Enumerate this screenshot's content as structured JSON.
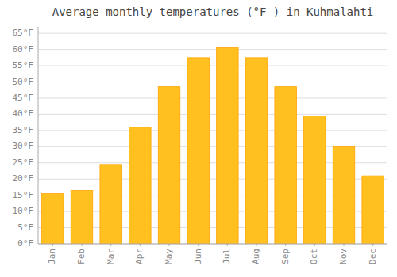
{
  "chart_data": {
    "type": "bar",
    "title": "Average monthly temperatures (°F ) in Kuhmalahti",
    "categories": [
      "Jan",
      "Feb",
      "Mar",
      "Apr",
      "May",
      "Jun",
      "Jul",
      "Aug",
      "Sep",
      "Oct",
      "Nov",
      "Dec"
    ],
    "values": [
      15.5,
      16.5,
      24.5,
      36.0,
      48.5,
      57.5,
      60.5,
      57.5,
      48.5,
      39.5,
      30.0,
      21.0
    ],
    "color": "#FFC020",
    "ylim": [
      0,
      67
    ],
    "yticks": [
      {
        "value": 0,
        "label": "0°F"
      },
      {
        "value": 5,
        "label": "5°F"
      },
      {
        "value": 10,
        "label": "10°F"
      },
      {
        "value": 15,
        "label": "15°F"
      },
      {
        "value": 20,
        "label": "20°F"
      },
      {
        "value": 25,
        "label": "25°F"
      },
      {
        "value": 30,
        "label": "30°F"
      },
      {
        "value": 35,
        "label": "35°F"
      },
      {
        "value": 40,
        "label": "40°F"
      },
      {
        "value": 45,
        "label": "45°F"
      },
      {
        "value": 50,
        "label": "50°F"
      },
      {
        "value": 55,
        "label": "55°F"
      },
      {
        "value": 60,
        "label": "60°F"
      },
      {
        "value": 65,
        "label": "65°F"
      }
    ],
    "grid": true
  }
}
